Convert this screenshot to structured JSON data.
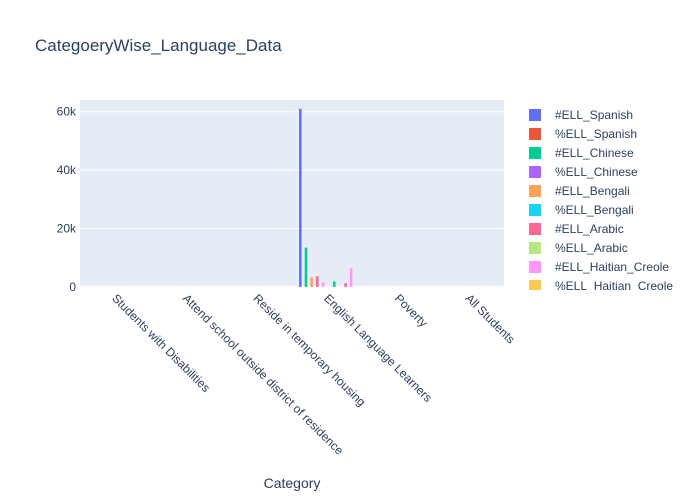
{
  "chart_data": {
    "type": "bar",
    "title": "CategoeryWise_Language_Data",
    "xlabel": "Category",
    "ylabel": "",
    "ylim": [
      0,
      64000
    ],
    "yticks": [
      0,
      20000,
      40000,
      60000
    ],
    "ytick_labels": [
      "0",
      "20k",
      "40k",
      "60k"
    ],
    "grid": true,
    "legend_position": "right",
    "categories": [
      "Students with Disabilities",
      "Attend school outside district of residence",
      "Reside in temporary housing",
      "English Language Learners",
      "Poverty",
      "All Students"
    ],
    "series": [
      {
        "name": "#ELL_Spanish",
        "color": "#636efa",
        "values": [
          0,
          0,
          0,
          61000,
          0,
          0
        ]
      },
      {
        "name": "%ELL_Spanish",
        "color": "#EF553B",
        "values": [
          0,
          0,
          0,
          0,
          0,
          0
        ]
      },
      {
        "name": "#ELL_Chinese",
        "color": "#00cc96",
        "values": [
          0,
          0,
          0,
          13500,
          0,
          0
        ]
      },
      {
        "name": "%ELL_Chinese",
        "color": "#ab63fa",
        "values": [
          0,
          0,
          0,
          0,
          0,
          0
        ]
      },
      {
        "name": "#ELL_Bengali",
        "color": "#FFA15A",
        "values": [
          0,
          0,
          0,
          3300,
          0,
          0
        ]
      },
      {
        "name": "%ELL_Bengali",
        "color": "#19d3f3",
        "values": [
          0,
          0,
          0,
          0,
          0,
          0
        ]
      },
      {
        "name": "#ELL_Arabic",
        "color": "#FF6692",
        "values": [
          0,
          0,
          0,
          3700,
          0,
          0
        ]
      },
      {
        "name": "%ELL_Arabic",
        "color": "#B6E880",
        "values": [
          0,
          0,
          0,
          0,
          0,
          0
        ]
      },
      {
        "name": "#ELL_Haitian_Creole",
        "color": "#FF97FF",
        "values": [
          0,
          0,
          0,
          1600,
          0,
          0
        ]
      },
      {
        "name": "%ELL_Haitian_Creole",
        "color": "#FECB52",
        "values": [
          0,
          0,
          0,
          0,
          0,
          0
        ]
      },
      {
        "name": "",
        "color": "#636efa",
        "values": [
          0,
          0,
          0,
          0,
          0,
          0
        ]
      },
      {
        "name": "",
        "color": "#EF553B",
        "values": [
          0,
          0,
          0,
          0,
          0,
          0
        ]
      },
      {
        "name": "",
        "color": "#00cc96",
        "values": [
          0,
          0,
          0,
          1900,
          0,
          0
        ]
      },
      {
        "name": "",
        "color": "#ab63fa",
        "values": [
          0,
          0,
          0,
          0,
          0,
          0
        ]
      },
      {
        "name": "",
        "color": "#FFA15A",
        "values": [
          0,
          0,
          0,
          0,
          0,
          0
        ]
      },
      {
        "name": "",
        "color": "#19d3f3",
        "values": [
          0,
          0,
          0,
          0,
          0,
          0
        ]
      },
      {
        "name": "",
        "color": "#FF6692",
        "values": [
          0,
          0,
          0,
          1300,
          0,
          0
        ]
      },
      {
        "name": "",
        "color": "#B6E880",
        "values": [
          0,
          0,
          0,
          0,
          0,
          0
        ]
      },
      {
        "name": "",
        "color": "#FF97FF",
        "values": [
          0,
          0,
          0,
          6500,
          0,
          0
        ]
      },
      {
        "name": "",
        "color": "#FECB52",
        "values": [
          0,
          0,
          0,
          0,
          0,
          0
        ]
      }
    ]
  }
}
